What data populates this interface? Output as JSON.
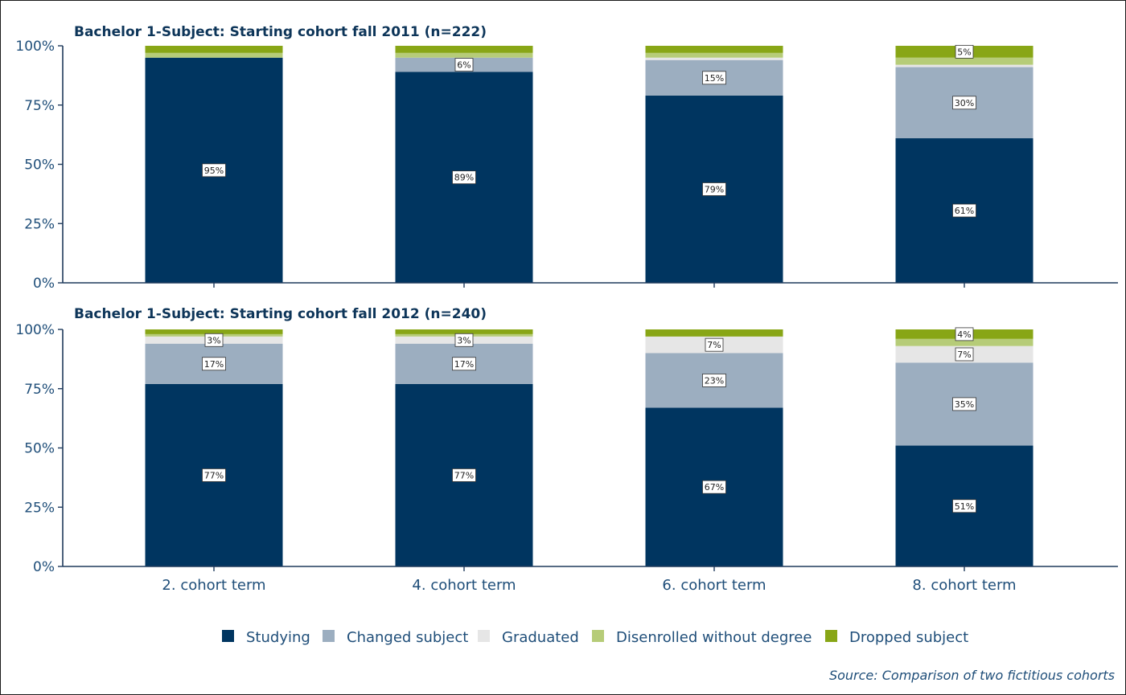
{
  "source": "Source: Comparison of two fictitious cohorts",
  "colors": {
    "Studying": "#003560",
    "Changed subject": "#9caec0",
    "Graduated": "#e6e6e6",
    "Disenrolled without degree": "#b6cc78",
    "Dropped subject": "#88a616",
    "axis": "#1f3a5c"
  },
  "legend": [
    "Studying",
    "Changed subject",
    "Graduated",
    "Disenrolled without degree",
    "Dropped subject"
  ],
  "chart_data": [
    {
      "type": "bar",
      "stacked": true,
      "title": "Bachelor 1-Subject: Starting cohort fall 2011 (n=222)",
      "categories": [
        "2. cohort term",
        "4. cohort term",
        "6. cohort term",
        "8. cohort term"
      ],
      "ylim": [
        0,
        100
      ],
      "yticks": [
        "0%",
        "25%",
        "50%",
        "75%",
        "100%"
      ],
      "series": [
        {
          "name": "Studying",
          "values": [
            95,
            89,
            79,
            61
          ]
        },
        {
          "name": "Changed subject",
          "values": [
            0,
            6,
            15,
            30
          ]
        },
        {
          "name": "Graduated",
          "values": [
            0,
            0,
            1,
            1
          ]
        },
        {
          "name": "Disenrolled without degree",
          "values": [
            2,
            2,
            2,
            3
          ]
        },
        {
          "name": "Dropped subject",
          "values": [
            3,
            3,
            3,
            5
          ]
        }
      ],
      "data_labels": [
        [
          "95%",
          "",
          "",
          "",
          ""
        ],
        [
          "89%",
          "6%",
          "",
          "",
          ""
        ],
        [
          "79%",
          "15%",
          "",
          "",
          ""
        ],
        [
          "61%",
          "30%",
          "",
          "",
          "5%"
        ]
      ]
    },
    {
      "type": "bar",
      "stacked": true,
      "title": "Bachelor 1-Subject: Starting cohort fall 2012 (n=240)",
      "categories": [
        "2. cohort term",
        "4. cohort term",
        "6. cohort term",
        "8. cohort term"
      ],
      "ylim": [
        0,
        100
      ],
      "yticks": [
        "0%",
        "25%",
        "50%",
        "75%",
        "100%"
      ],
      "series": [
        {
          "name": "Studying",
          "values": [
            77,
            77,
            67,
            51
          ]
        },
        {
          "name": "Changed subject",
          "values": [
            17,
            17,
            23,
            35
          ]
        },
        {
          "name": "Graduated",
          "values": [
            3,
            3,
            7,
            7
          ]
        },
        {
          "name": "Disenrolled without degree",
          "values": [
            1,
            1,
            0,
            3
          ]
        },
        {
          "name": "Dropped subject",
          "values": [
            2,
            2,
            3,
            4
          ]
        }
      ],
      "data_labels": [
        [
          "77%",
          "17%",
          "3%",
          "",
          ""
        ],
        [
          "77%",
          "17%",
          "3%",
          "",
          ""
        ],
        [
          "67%",
          "23%",
          "7%",
          "",
          ""
        ],
        [
          "51%",
          "35%",
          "7%",
          "",
          "4%"
        ]
      ]
    }
  ]
}
